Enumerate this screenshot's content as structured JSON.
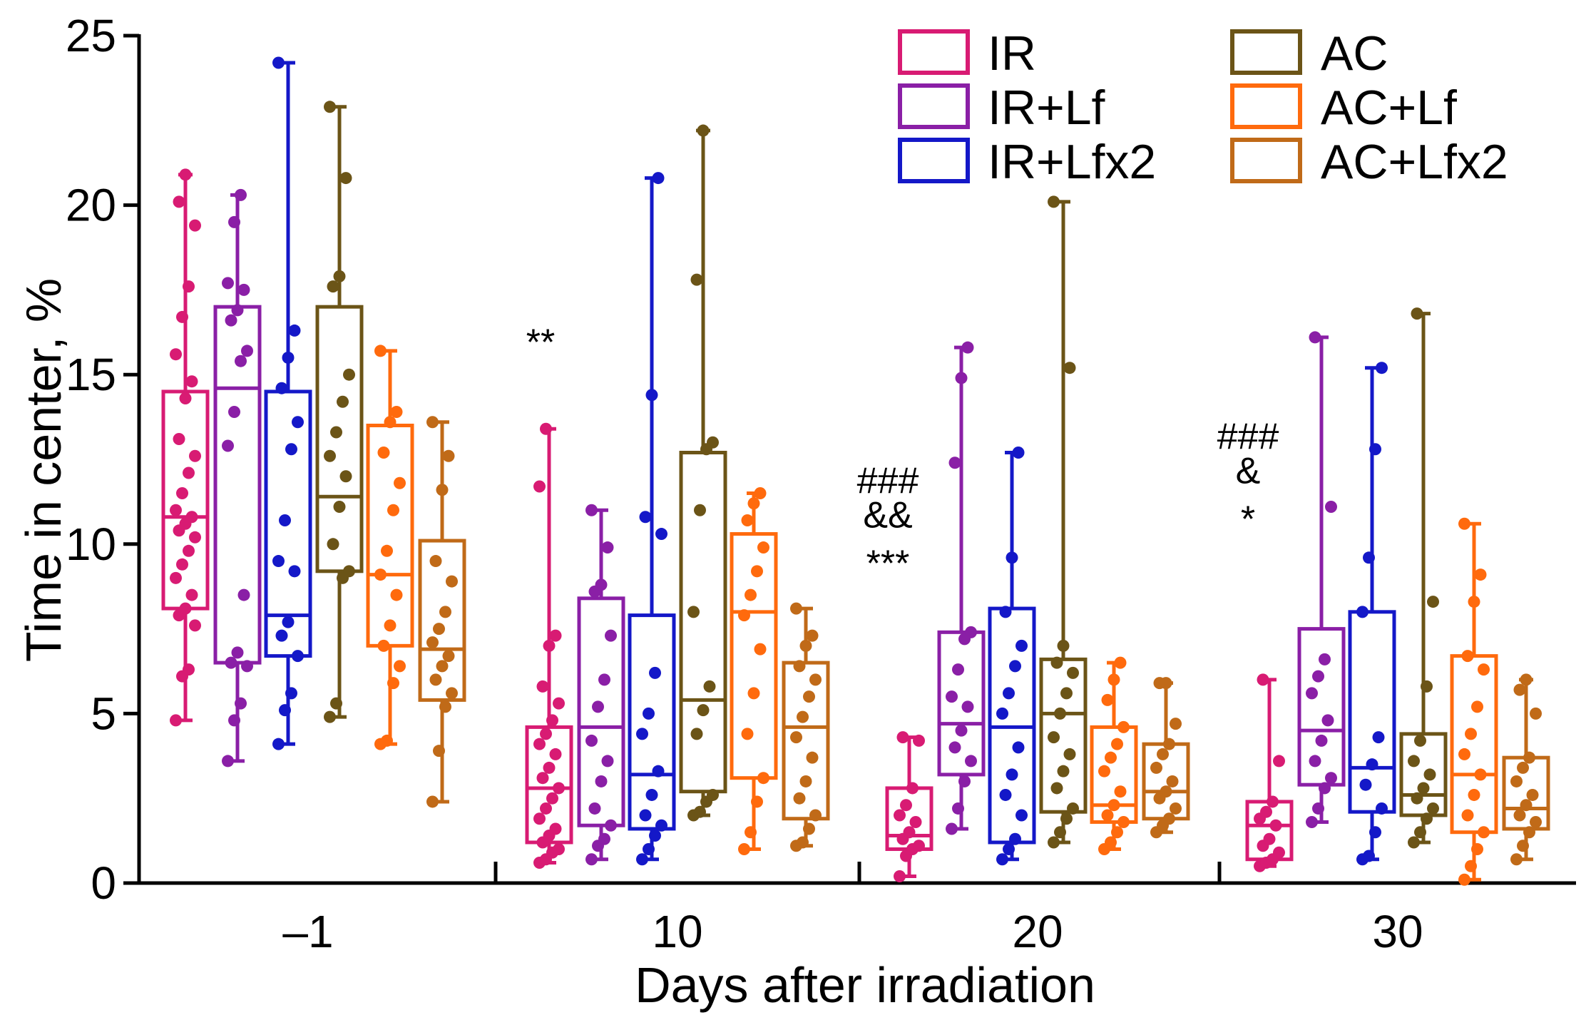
{
  "chart_data": {
    "type": "box",
    "xlabel": "Days after irradiation",
    "ylabel": "Time in center, %",
    "ylim": [
      0,
      25
    ],
    "yticks": [
      0,
      5,
      10,
      15,
      20,
      25
    ],
    "categories": [
      "–1",
      "10",
      "20",
      "30"
    ],
    "legend_position": "top-right",
    "series": [
      {
        "name": "IR",
        "color": "#d81b73",
        "groups": [
          {
            "min": 4.8,
            "q1": 8.1,
            "median": 10.8,
            "q3": 14.5,
            "max": 20.9,
            "points": [
              4.8,
              6.1,
              6.3,
              7.6,
              7.9,
              8.1,
              8.5,
              9.0,
              9.4,
              9.8,
              10.2,
              10.4,
              10.6,
              10.8,
              11.0,
              11.5,
              12.1,
              12.6,
              13.1,
              14.3,
              14.8,
              15.6,
              16.7,
              17.6,
              19.4,
              20.1,
              20.9
            ]
          },
          {
            "min": 0.6,
            "q1": 1.2,
            "median": 2.8,
            "q3": 4.6,
            "max": 13.4,
            "points": [
              0.6,
              0.7,
              0.9,
              1.0,
              1.2,
              1.4,
              1.6,
              1.9,
              2.2,
              2.5,
              2.8,
              3.1,
              3.4,
              3.8,
              4.1,
              4.4,
              4.8,
              5.3,
              5.8,
              7.0,
              7.3,
              11.7,
              13.4
            ]
          },
          {
            "min": 0.2,
            "q1": 1.0,
            "median": 1.4,
            "q3": 2.8,
            "max": 4.3,
            "points": [
              0.2,
              0.8,
              1.0,
              1.1,
              1.3,
              1.5,
              1.8,
              2.0,
              2.3,
              2.8,
              4.2,
              4.3
            ]
          },
          {
            "min": 0.5,
            "q1": 0.7,
            "median": 1.7,
            "q3": 2.4,
            "max": 6.0,
            "points": [
              0.5,
              0.6,
              0.7,
              0.9,
              1.1,
              1.3,
              1.7,
              1.9,
              2.1,
              2.4,
              3.6,
              6.0
            ]
          }
        ]
      },
      {
        "name": "IR+Lf",
        "color": "#8a1fa6",
        "groups": [
          {
            "min": 3.6,
            "q1": 6.5,
            "median": 14.6,
            "q3": 17.0,
            "max": 20.3,
            "points": [
              3.6,
              4.8,
              5.3,
              6.4,
              6.5,
              6.8,
              8.5,
              12.9,
              13.9,
              15.4,
              15.7,
              16.6,
              16.9,
              17.5,
              17.7,
              19.5,
              20.3
            ]
          },
          {
            "min": 0.7,
            "q1": 1.7,
            "median": 4.6,
            "q3": 8.4,
            "max": 11.0,
            "points": [
              0.7,
              1.1,
              1.3,
              1.7,
              2.2,
              3.0,
              3.6,
              4.2,
              5.2,
              6.0,
              7.3,
              8.6,
              8.8,
              9.9,
              11.0
            ]
          },
          {
            "min": 1.6,
            "q1": 3.2,
            "median": 4.7,
            "q3": 7.4,
            "max": 15.8,
            "points": [
              1.6,
              2.2,
              3.0,
              3.6,
              4.0,
              4.5,
              5.2,
              5.5,
              6.3,
              7.2,
              7.4,
              12.4,
              14.9,
              15.8
            ]
          },
          {
            "min": 1.8,
            "q1": 2.9,
            "median": 4.5,
            "q3": 7.5,
            "max": 16.1,
            "points": [
              1.8,
              2.2,
              2.8,
              3.1,
              3.6,
              4.2,
              4.8,
              5.6,
              6.1,
              6.6,
              11.1,
              16.1
            ]
          }
        ]
      },
      {
        "name": "IR+Lfx2",
        "color": "#1418c8",
        "groups": [
          {
            "min": 4.1,
            "q1": 6.7,
            "median": 7.9,
            "q3": 14.5,
            "max": 24.2,
            "points": [
              4.1,
              5.1,
              5.6,
              6.7,
              7.3,
              7.7,
              9.2,
              9.5,
              10.7,
              12.8,
              13.6,
              14.6,
              15.5,
              16.3,
              24.2
            ]
          },
          {
            "min": 0.7,
            "q1": 1.6,
            "median": 3.2,
            "q3": 7.9,
            "max": 20.8,
            "points": [
              0.7,
              1.0,
              1.4,
              1.7,
              2.0,
              2.6,
              3.3,
              4.4,
              5.0,
              6.2,
              10.3,
              10.8,
              14.4,
              20.8
            ]
          },
          {
            "min": 0.7,
            "q1": 1.2,
            "median": 4.6,
            "q3": 8.1,
            "max": 12.7,
            "points": [
              0.7,
              1.0,
              1.3,
              2.0,
              2.6,
              3.2,
              4.0,
              5.0,
              5.6,
              6.4,
              7.0,
              8.0,
              9.6,
              12.7
            ]
          },
          {
            "min": 0.7,
            "q1": 2.1,
            "median": 3.4,
            "q3": 8.0,
            "max": 15.2,
            "points": [
              0.7,
              0.8,
              1.5,
              2.2,
              2.9,
              3.5,
              4.3,
              8.0,
              9.6,
              12.8,
              15.2
            ]
          }
        ]
      },
      {
        "name": "AC",
        "color": "#6b5417",
        "groups": [
          {
            "min": 4.9,
            "q1": 9.2,
            "median": 11.4,
            "q3": 17.0,
            "max": 22.9,
            "points": [
              4.9,
              5.3,
              9.0,
              9.2,
              10.0,
              11.1,
              12.0,
              12.6,
              13.3,
              14.2,
              15.0,
              17.6,
              17.9,
              20.8,
              22.9
            ]
          },
          {
            "min": 2.0,
            "q1": 2.7,
            "median": 5.4,
            "q3": 12.7,
            "max": 22.2,
            "points": [
              2.0,
              2.1,
              2.4,
              2.6,
              4.4,
              5.1,
              5.8,
              8.0,
              11.0,
              12.8,
              13.0,
              17.8,
              22.2
            ]
          },
          {
            "min": 1.2,
            "q1": 2.1,
            "median": 5.0,
            "q3": 6.6,
            "max": 20.1,
            "points": [
              1.2,
              1.5,
              1.9,
              2.2,
              2.8,
              3.3,
              3.8,
              4.3,
              5.0,
              5.6,
              6.2,
              6.5,
              7.0,
              15.2,
              20.1
            ]
          },
          {
            "min": 1.2,
            "q1": 2.0,
            "median": 2.6,
            "q3": 4.4,
            "max": 16.8,
            "points": [
              1.2,
              1.5,
              1.9,
              2.2,
              2.5,
              2.8,
              3.2,
              3.6,
              4.2,
              5.8,
              8.3,
              16.8
            ]
          }
        ]
      },
      {
        "name": "AC+Lf",
        "color": "#ff6a0d",
        "groups": [
          {
            "min": 4.1,
            "q1": 7.0,
            "median": 9.1,
            "q3": 13.5,
            "max": 15.7,
            "points": [
              4.1,
              4.2,
              5.9,
              6.4,
              7.0,
              7.6,
              8.5,
              9.1,
              9.8,
              11.0,
              11.8,
              12.7,
              13.6,
              13.9,
              15.7
            ]
          },
          {
            "min": 1.0,
            "q1": 3.1,
            "median": 8.0,
            "q3": 10.3,
            "max": 11.5,
            "points": [
              1.0,
              1.5,
              2.4,
              3.1,
              4.4,
              5.6,
              6.9,
              7.9,
              8.5,
              9.2,
              9.9,
              10.7,
              11.2,
              11.5
            ]
          },
          {
            "min": 1.0,
            "q1": 1.8,
            "median": 2.3,
            "q3": 4.6,
            "max": 6.5,
            "points": [
              1.0,
              1.2,
              1.5,
              1.8,
              2.0,
              2.3,
              2.7,
              3.3,
              3.7,
              4.1,
              4.6,
              5.4,
              6.0,
              6.5
            ]
          },
          {
            "min": 0.1,
            "q1": 1.5,
            "median": 3.2,
            "q3": 6.7,
            "max": 10.6,
            "points": [
              0.1,
              0.5,
              1.0,
              1.5,
              2.0,
              2.6,
              3.2,
              3.8,
              4.4,
              5.2,
              6.3,
              6.7,
              8.3,
              9.1,
              10.6
            ]
          }
        ]
      },
      {
        "name": "AC+Lfx2",
        "color": "#c06a18",
        "groups": [
          {
            "min": 2.4,
            "q1": 5.4,
            "median": 6.9,
            "q3": 10.1,
            "max": 13.6,
            "points": [
              2.4,
              3.9,
              5.2,
              5.6,
              6.0,
              6.4,
              6.7,
              7.1,
              7.5,
              8.0,
              8.9,
              9.5,
              11.6,
              12.6,
              13.6
            ]
          },
          {
            "min": 1.1,
            "q1": 1.9,
            "median": 4.6,
            "q3": 6.5,
            "max": 8.1,
            "points": [
              1.1,
              1.2,
              1.6,
              2.0,
              2.5,
              3.0,
              3.7,
              4.3,
              4.9,
              5.5,
              6.0,
              6.4,
              7.0,
              7.3,
              8.1
            ]
          },
          {
            "min": 1.5,
            "q1": 1.9,
            "median": 2.7,
            "q3": 4.1,
            "max": 5.9,
            "points": [
              1.5,
              1.7,
              1.9,
              2.2,
              2.5,
              2.7,
              3.0,
              3.4,
              3.8,
              4.1,
              4.7,
              5.9,
              5.9
            ]
          },
          {
            "min": 0.7,
            "q1": 1.6,
            "median": 2.2,
            "q3": 3.7,
            "max": 6.0,
            "points": [
              0.7,
              1.1,
              1.5,
              1.8,
              2.0,
              2.3,
              2.6,
              3.0,
              3.4,
              3.7,
              5.0,
              5.7,
              6.0
            ]
          }
        ]
      }
    ],
    "annotations": [
      {
        "category": 1,
        "lines": [
          "**"
        ],
        "y": 16.0
      },
      {
        "category": 2,
        "lines": [
          "###",
          "&&",
          "***"
        ],
        "y": 11.5
      },
      {
        "category": 3,
        "lines": [
          "###",
          "&",
          "*"
        ],
        "y": 12.8
      }
    ]
  }
}
